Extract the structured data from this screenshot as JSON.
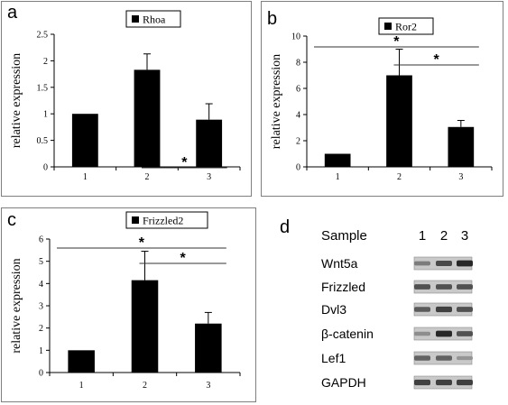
{
  "chart_data": [
    {
      "panel": "a",
      "type": "bar",
      "legend": "Rhoa",
      "categories": [
        "1",
        "2",
        "3"
      ],
      "values": [
        1.0,
        1.83,
        0.89
      ],
      "errors": [
        0,
        0.3,
        0.3
      ],
      "ylabel": "relative expression",
      "ylim": [
        0,
        2.5
      ],
      "yticks": [
        "0",
        "0.5",
        "1",
        "1.5",
        "2",
        "2.5"
      ],
      "significance": [
        {
          "from": "2",
          "to": "3",
          "label": "*"
        }
      ]
    },
    {
      "panel": "b",
      "type": "bar",
      "legend": "Ror2",
      "categories": [
        "1",
        "2",
        "3"
      ],
      "values": [
        1.0,
        7.0,
        3.05
      ],
      "errors": [
        0,
        2.0,
        0.5
      ],
      "ylabel": "relative expression",
      "ylim": [
        0,
        10
      ],
      "yticks": [
        "0",
        "2",
        "4",
        "6",
        "8",
        "10"
      ],
      "significance": [
        {
          "from": "1",
          "to": "3",
          "label": "*"
        },
        {
          "from": "2",
          "to": "3",
          "label": "*"
        }
      ]
    },
    {
      "panel": "c",
      "type": "bar",
      "legend": "Frizzled2",
      "categories": [
        "1",
        "2",
        "3"
      ],
      "values": [
        1.0,
        4.15,
        2.2
      ],
      "errors": [
        0,
        1.3,
        0.5
      ],
      "ylabel": "relative expression",
      "ylim": [
        0,
        6
      ],
      "yticks": [
        "0",
        "1",
        "2",
        "3",
        "4",
        "5",
        "6"
      ],
      "significance": [
        {
          "from": "1",
          "to": "3",
          "label": "*"
        },
        {
          "from": "2",
          "to": "3",
          "label": "*"
        }
      ]
    }
  ],
  "blot": {
    "panel": "d",
    "header": "Sample",
    "lanes": [
      "1",
      "2",
      "3"
    ],
    "rows": [
      {
        "label": "Wnt5a",
        "intensity": [
          0.45,
          0.75,
          0.95
        ]
      },
      {
        "label": "Frizzled",
        "intensity": [
          0.7,
          0.7,
          0.7
        ]
      },
      {
        "label": "Dvl3",
        "intensity": [
          0.65,
          0.8,
          0.7
        ]
      },
      {
        "label": "β-catenin",
        "intensity": [
          0.35,
          0.95,
          0.7
        ]
      },
      {
        "label": "Lef1",
        "intensity": [
          0.6,
          0.6,
          0.3
        ]
      },
      {
        "label": "GAPDH",
        "intensity": [
          0.8,
          0.8,
          0.8
        ]
      }
    ]
  }
}
